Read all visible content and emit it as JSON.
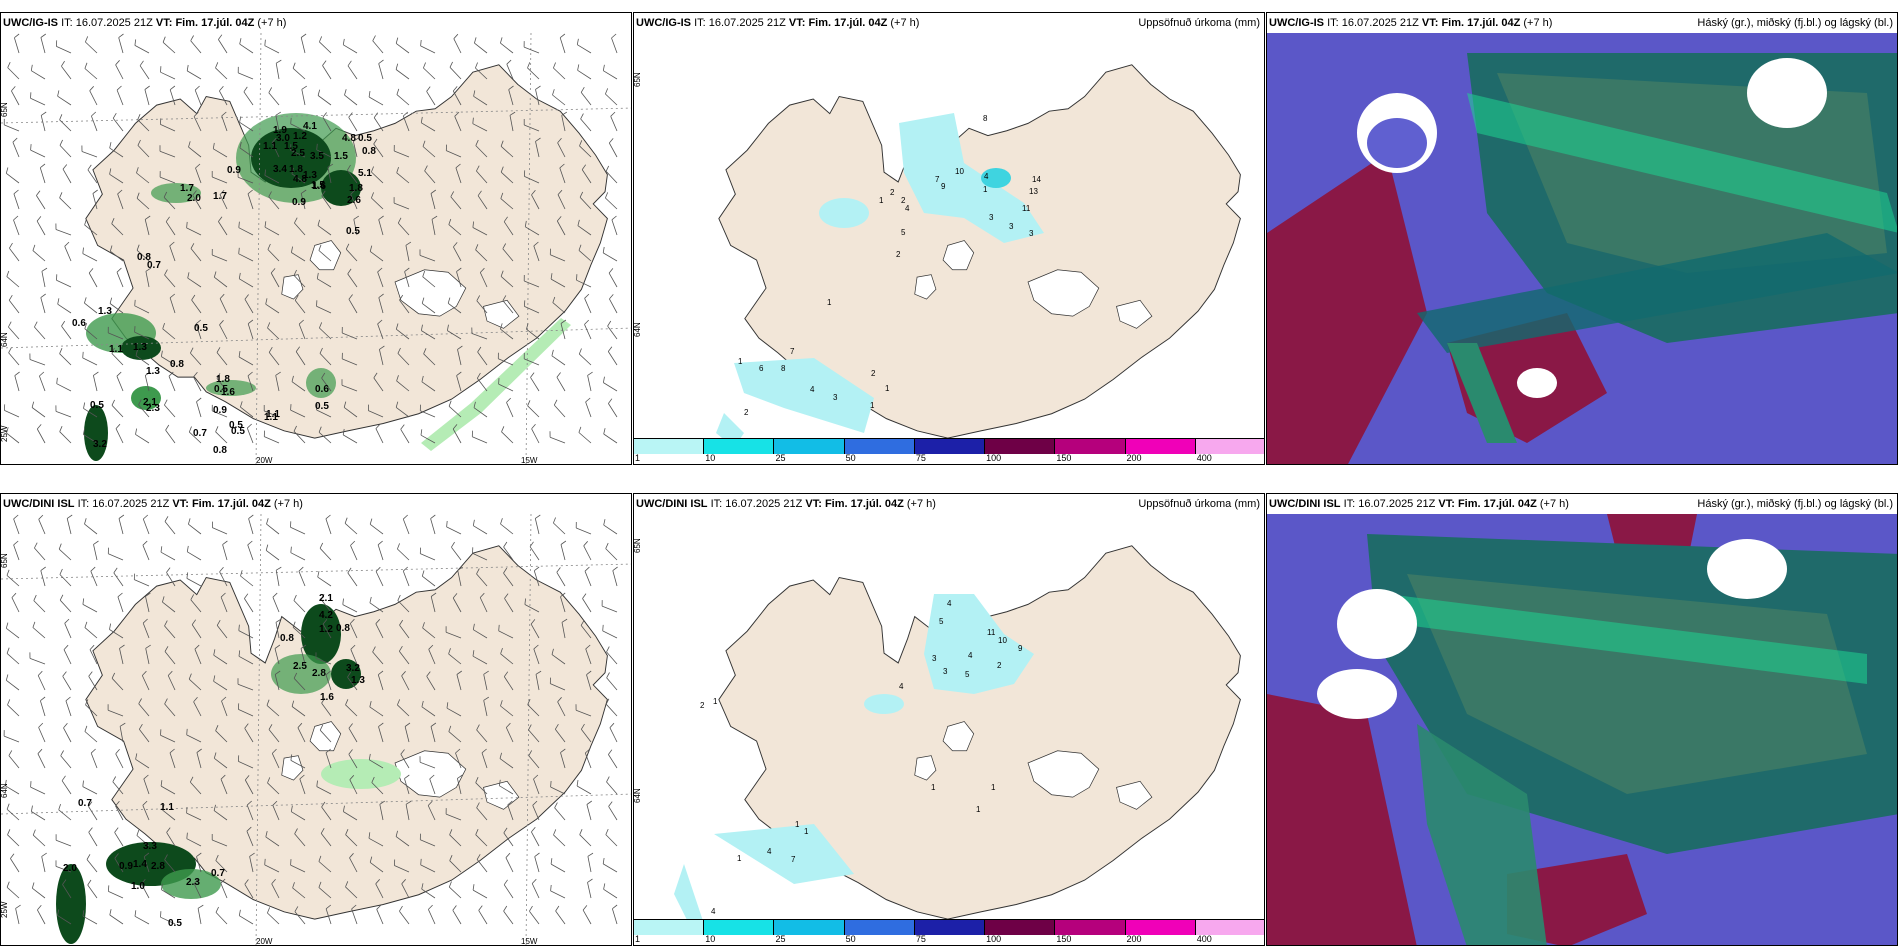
{
  "header_common": {
    "it_label": "IT:",
    "it_value": "16.07.2025 21Z",
    "vt_label": "VT:",
    "vt_value": "Fim. 17.júl. 04Z",
    "lead": "(+7 h)"
  },
  "models": {
    "top": "UWC/IG-IS",
    "bottom": "UWC/DINI ISL"
  },
  "precip_title": "Uppsöfnuð úrkoma (mm)",
  "cloud_title": "Háský (gr.), miðský (fj.bl.) og lágský (bl.)",
  "grid_labels": {
    "lat65": "65N",
    "lat64": "64N",
    "lon25": "25W",
    "lon20": "20W",
    "lon15": "15W"
  },
  "legend": {
    "labels": [
      "1",
      "10",
      "25",
      "50",
      "75",
      "100",
      "150",
      "200",
      "400"
    ],
    "colors": [
      "#b9f5f5",
      "#17e2e6",
      "#12bde6",
      "#2f6de0",
      "#1c20a8",
      "#6e0046",
      "#b5007c",
      "#f000b8",
      "#f7a8ee"
    ]
  },
  "colors": {
    "land": "#f2e6d8",
    "precip_light": "#b3f1f4",
    "precip_strong": "#3fd4e0",
    "green_dark": "#0d4a1c",
    "green_mid": "#3e9a4e",
    "green_light": "#b5ecb5"
  },
  "panels": {
    "top_left_values": [
      "4.1",
      "1.2",
      "1.9",
      "3.0",
      "1.1",
      "4.8",
      "0.5",
      "0.8",
      "1.5",
      "2.5",
      "3.5",
      "1.5",
      "3.4",
      "1.8",
      "1.3",
      "0.9",
      "4.8",
      "5.1",
      "1.5",
      "0.9",
      "1.6",
      "1.8",
      "2.6",
      "1.7",
      "2.0",
      "1.7",
      "0.5",
      "0.8",
      "0.7",
      "1.3",
      "0.6",
      "0.5",
      "1.1",
      "1.3",
      "0.8",
      "1.3",
      "2.1",
      "1.8",
      "0.5",
      "1.6",
      "0.6",
      "0.5",
      "0.5",
      "0.9",
      "2.3",
      "0.5",
      "1.1",
      "3.2",
      "0.7",
      "0.5",
      "0.8",
      "1.1"
    ],
    "top_mid_values": [
      "8",
      "4",
      "7",
      "10",
      "2",
      "1",
      "9",
      "14",
      "13",
      "2",
      "1",
      "4",
      "5",
      "11",
      "3",
      "3",
      "3",
      "2",
      "1",
      "7",
      "1",
      "6",
      "8",
      "2",
      "4",
      "3",
      "1",
      "2",
      "1"
    ],
    "bottom_left_values": [
      "2.1",
      "4.2",
      "1.2",
      "0.8",
      "0.8",
      "3.2",
      "2.5",
      "2.8",
      "1.3",
      "1.6",
      "0.7",
      "1.1",
      "3.3",
      "0.9",
      "1.4",
      "2.0",
      "1.0",
      "2.8",
      "2.3",
      "0.7",
      "0.5"
    ],
    "bottom_mid_values": [
      "4",
      "5",
      "11",
      "10",
      "9",
      "4",
      "2",
      "3",
      "3",
      "5",
      "4",
      "2",
      "1",
      "1",
      "1",
      "1",
      "1",
      "1",
      "4",
      "7",
      "1",
      "4"
    ]
  }
}
